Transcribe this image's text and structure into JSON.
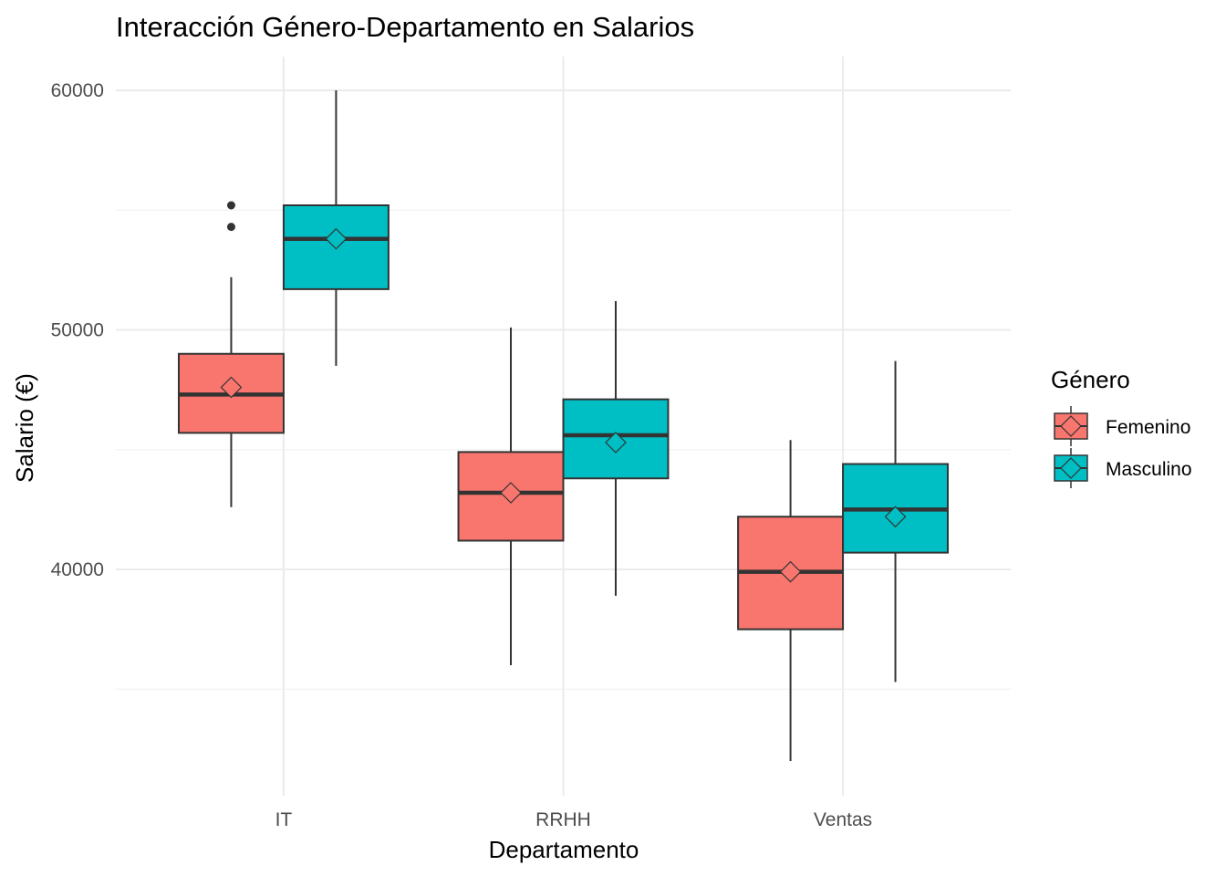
{
  "chart_data": {
    "type": "boxplot",
    "title": "Interacción Género-Departamento en Salarios",
    "xlabel": "Departamento",
    "ylabel": "Salario (€)",
    "categories": [
      "IT",
      "RRHH",
      "Ventas"
    ],
    "ylim": [
      31000,
      61500
    ],
    "yticks": [
      40000,
      50000,
      60000
    ],
    "grid": true,
    "legend": {
      "title": "Género",
      "position": "right"
    },
    "series": [
      {
        "name": "Femenino",
        "color": "#F8766D",
        "boxes": [
          {
            "category": "IT",
            "min": 42600,
            "q1": 45700,
            "median": 47300,
            "q3": 49000,
            "max": 52200,
            "mean": 47600,
            "outliers": [
              54300,
              55200
            ]
          },
          {
            "category": "RRHH",
            "min": 36000,
            "q1": 41200,
            "median": 43200,
            "q3": 44900,
            "max": 50100,
            "mean": 43200,
            "outliers": []
          },
          {
            "category": "Ventas",
            "min": 32000,
            "q1": 37500,
            "median": 39900,
            "q3": 42200,
            "max": 45400,
            "mean": 39900,
            "outliers": []
          }
        ]
      },
      {
        "name": "Masculino",
        "color": "#00BFC4",
        "boxes": [
          {
            "category": "IT",
            "min": 48500,
            "q1": 51700,
            "median": 53800,
            "q3": 55200,
            "max": 60000,
            "mean": 53800,
            "outliers": []
          },
          {
            "category": "RRHH",
            "min": 38900,
            "q1": 43800,
            "median": 45600,
            "q3": 47100,
            "max": 51200,
            "mean": 45300,
            "outliers": []
          },
          {
            "category": "Ventas",
            "min": 35300,
            "q1": 40700,
            "median": 42500,
            "q3": 44400,
            "max": 48700,
            "mean": 42200,
            "outliers": []
          }
        ]
      }
    ]
  }
}
